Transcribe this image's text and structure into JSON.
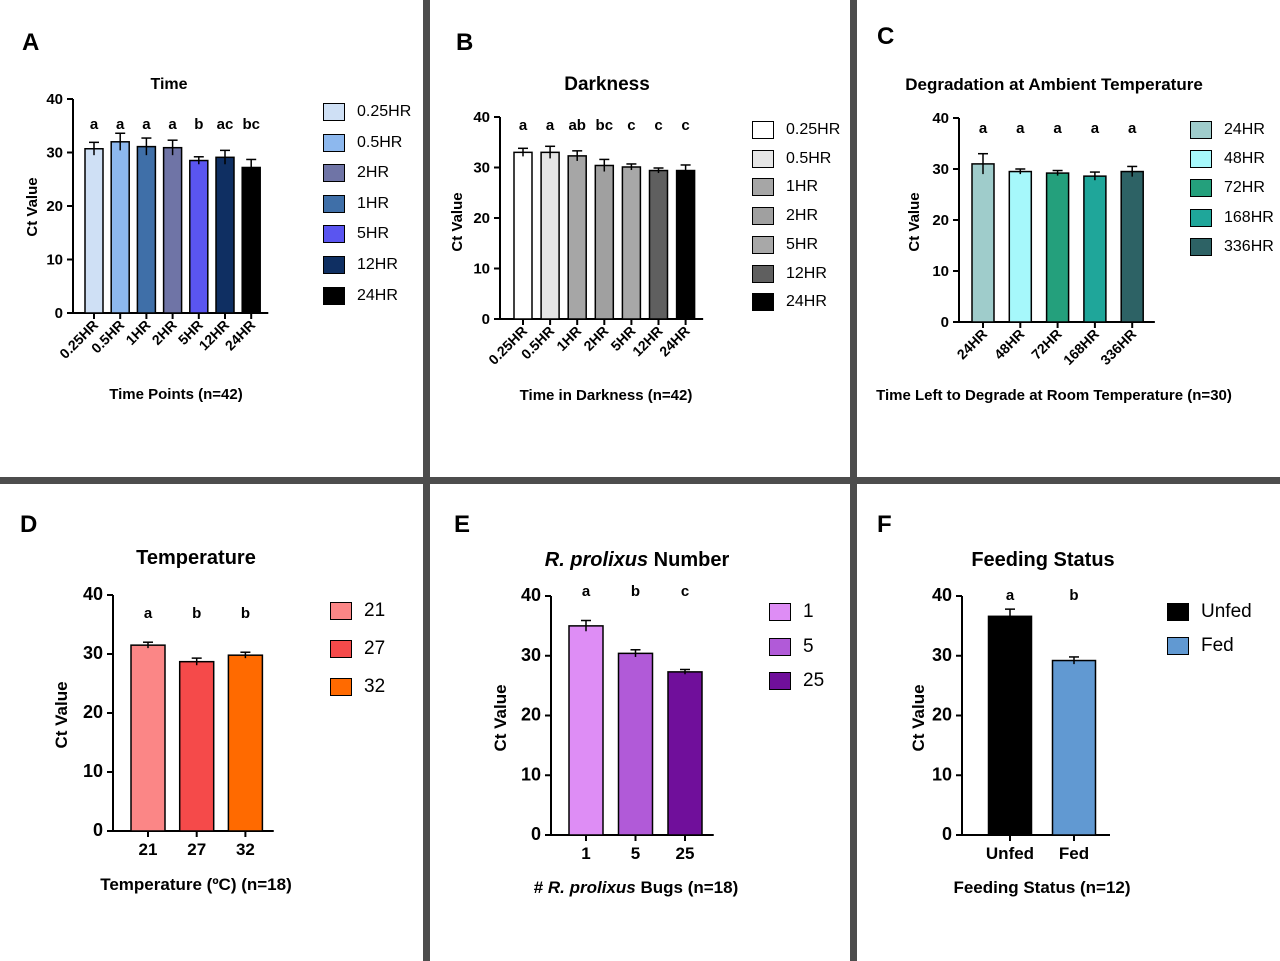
{
  "chart_data": [
    {
      "panel": "A",
      "type": "bar",
      "title": "Time",
      "xlabel": "Time Points (n=42)",
      "ylabel": "Ct Value",
      "ylim": [
        0,
        40
      ],
      "yticks": [
        0,
        10,
        20,
        30,
        40
      ],
      "categories": [
        "0.25HR",
        "0.5HR",
        "1HR",
        "2HR",
        "5HR",
        "12HR",
        "24HR"
      ],
      "values": [
        30.7,
        32.0,
        31.1,
        30.9,
        28.5,
        29.1,
        27.2
      ],
      "errors": [
        1.2,
        1.6,
        1.6,
        1.4,
        0.7,
        1.3,
        1.5
      ],
      "significance": [
        "a",
        "a",
        "a",
        "a",
        "b",
        "ac",
        "bc"
      ],
      "colors": [
        "#cfe0f5",
        "#8db8ee",
        "#3f6fa8",
        "#6f74a6",
        "#5a55f0",
        "#0f2f62",
        "#000000"
      ],
      "legend": [
        {
          "label": "0.25HR",
          "color": "#cfe0f5"
        },
        {
          "label": "0.5HR",
          "color": "#8db8ee"
        },
        {
          "label": "2HR",
          "color": "#6f74a6"
        },
        {
          "label": "1HR",
          "color": "#3f6fa8"
        },
        {
          "label": "5HR",
          "color": "#5a55f0"
        },
        {
          "label": "12HR",
          "color": "#0f2f62"
        },
        {
          "label": "24HR",
          "color": "#000000"
        }
      ]
    },
    {
      "panel": "B",
      "type": "bar",
      "title": "Darkness",
      "xlabel": "Time in Darkness (n=42)",
      "ylabel": "Ct Value",
      "ylim": [
        0,
        40
      ],
      "yticks": [
        0,
        10,
        20,
        30,
        40
      ],
      "categories": [
        "0.25HR",
        "0.5HR",
        "1HR",
        "2HR",
        "5HR",
        "12HR",
        "24HR"
      ],
      "values": [
        33.0,
        33.0,
        32.3,
        30.4,
        30.1,
        29.4,
        29.4
      ],
      "errors": [
        0.8,
        1.2,
        1.0,
        1.2,
        0.6,
        0.5,
        1.1
      ],
      "significance": [
        "a",
        "a",
        "ab",
        "bc",
        "c",
        "c",
        "c"
      ],
      "colors": [
        "#ffffff",
        "#e6e6e6",
        "#a6a6a6",
        "#a0a0a0",
        "#a8a8a8",
        "#5f5f5f",
        "#000000"
      ],
      "legend": [
        {
          "label": "0.25HR",
          "color": "#ffffff"
        },
        {
          "label": "0.5HR",
          "color": "#e6e6e6"
        },
        {
          "label": "1HR",
          "color": "#a6a6a6"
        },
        {
          "label": "2HR",
          "color": "#a0a0a0"
        },
        {
          "label": "5HR",
          "color": "#a8a8a8"
        },
        {
          "label": "12HR",
          "color": "#5f5f5f"
        },
        {
          "label": "24HR",
          "color": "#000000"
        }
      ]
    },
    {
      "panel": "C",
      "type": "bar",
      "title": "Degradation at Ambient Temperature",
      "xlabel": "Time Left to Degrade at Room Temperature (n=30)",
      "ylabel": "Ct Value",
      "ylim": [
        0,
        40
      ],
      "yticks": [
        0,
        10,
        20,
        30,
        40
      ],
      "categories": [
        "24HR",
        "48HR",
        "72HR",
        "168HR",
        "336HR"
      ],
      "values": [
        31.0,
        29.5,
        29.2,
        28.6,
        29.5
      ],
      "errors": [
        2.0,
        0.5,
        0.5,
        0.8,
        1.0
      ],
      "significance": [
        "a",
        "a",
        "a",
        "a",
        "a"
      ],
      "colors": [
        "#9fcccb",
        "#a6f8fb",
        "#24a07c",
        "#1fa69a",
        "#2d6265"
      ],
      "legend": [
        {
          "label": "24HR",
          "color": "#9fcccb"
        },
        {
          "label": "48HR",
          "color": "#a6f8fb"
        },
        {
          "label": "72HR",
          "color": "#24a07c"
        },
        {
          "label": "168HR",
          "color": "#1fa69a"
        },
        {
          "label": "336HR",
          "color": "#2d6265"
        }
      ]
    },
    {
      "panel": "D",
      "type": "bar",
      "title": "Temperature",
      "xlabel": "Temperature (ºC) (n=18)",
      "ylabel": "Ct Value",
      "ylim": [
        0,
        40
      ],
      "yticks": [
        0,
        10,
        20,
        30,
        40
      ],
      "categories": [
        "21",
        "27",
        "32"
      ],
      "values": [
        31.5,
        28.7,
        29.8
      ],
      "errors": [
        0.5,
        0.6,
        0.5
      ],
      "significance": [
        "a",
        "b",
        "b"
      ],
      "colors": [
        "#fb8686",
        "#f54a4a",
        "#ff6a00"
      ],
      "legend": [
        {
          "label": "21",
          "color": "#fb8686"
        },
        {
          "label": "27",
          "color": "#f54a4a"
        },
        {
          "label": "32",
          "color": "#ff6a00"
        }
      ]
    },
    {
      "panel": "E",
      "type": "bar",
      "title": "R. prolixus Number",
      "xlabel": "# R. prolixus Bugs (n=18)",
      "ylabel": "Ct Value",
      "ylim": [
        0,
        40
      ],
      "yticks": [
        0,
        10,
        20,
        30,
        40
      ],
      "categories": [
        "1",
        "5",
        "25"
      ],
      "values": [
        35.0,
        30.4,
        27.3
      ],
      "errors": [
        0.9,
        0.6,
        0.4
      ],
      "significance": [
        "a",
        "b",
        "c"
      ],
      "colors": [
        "#de8df5",
        "#b15ad8",
        "#700f9b"
      ],
      "legend": [
        {
          "label": "1",
          "color": "#de8df5"
        },
        {
          "label": "5",
          "color": "#b15ad8"
        },
        {
          "label": "25",
          "color": "#700f9b"
        }
      ]
    },
    {
      "panel": "F",
      "type": "bar",
      "title": "Feeding Status",
      "xlabel": "Feeding Status (n=12)",
      "ylabel": "Ct Value",
      "ylim": [
        0,
        40
      ],
      "yticks": [
        0,
        10,
        20,
        30,
        40
      ],
      "categories": [
        "Unfed",
        "Fed"
      ],
      "values": [
        36.6,
        29.2
      ],
      "errors": [
        1.2,
        0.6
      ],
      "significance": [
        "a",
        "b"
      ],
      "colors": [
        "#000000",
        "#6199d2"
      ],
      "legend": [
        {
          "label": "Unfed",
          "color": "#000000"
        },
        {
          "label": "Fed",
          "color": "#6199d2"
        }
      ]
    }
  ]
}
